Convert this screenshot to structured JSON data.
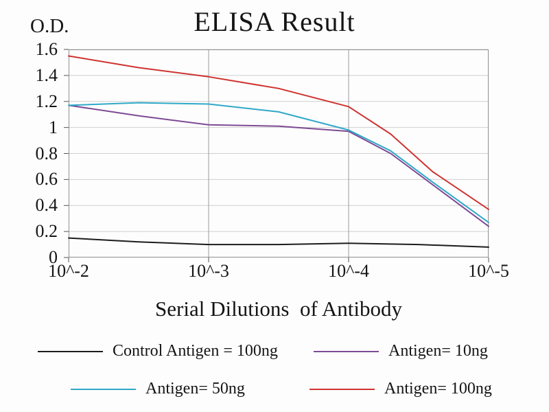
{
  "title": "ELISA Result",
  "y_axis_title": "O.D.",
  "x_axis_title": "Serial Dilutions  of Antibody",
  "colors": {
    "control": "#1c1c1c",
    "antigen_10ng": "#7d4a94",
    "antigen_50ng": "#2fa8c8",
    "antigen_100ng": "#cf3330",
    "grid_vertical": "#9b9b9b",
    "grid_horizontal": "#cfcfcf",
    "plot_border": "#8f8f8f"
  },
  "chart_data": {
    "type": "line",
    "title": "ELISA Result",
    "xlabel": "Serial Dilutions of Antibody",
    "ylabel": "O.D.",
    "x_scale": "log dilution exponent",
    "x_tick_labels": [
      "10^-2",
      "10^-3",
      "10^-4",
      "10^-5"
    ],
    "x_exponents": [
      -2,
      -3,
      -4,
      -5
    ],
    "ylim": [
      0,
      1.6
    ],
    "y_ticks": [
      0,
      0.2,
      0.4,
      0.6,
      0.8,
      1,
      1.2,
      1.4,
      1.6
    ],
    "grid": true,
    "legend_position": "bottom",
    "series": [
      {
        "name": "Control Antigen = 100ng",
        "color": "#1c1c1c",
        "points": [
          [
            -2,
            0.15
          ],
          [
            -2.5,
            0.12
          ],
          [
            -3,
            0.1
          ],
          [
            -3.5,
            0.1
          ],
          [
            -4,
            0.11
          ],
          [
            -4.5,
            0.1
          ],
          [
            -5,
            0.08
          ]
        ]
      },
      {
        "name": "Antigen= 10ng",
        "color": "#7d4a94",
        "points": [
          [
            -2,
            1.17
          ],
          [
            -2.5,
            1.09
          ],
          [
            -3,
            1.02
          ],
          [
            -3.5,
            1.01
          ],
          [
            -4,
            0.97
          ],
          [
            -4.3,
            0.8
          ],
          [
            -4.6,
            0.56
          ],
          [
            -5,
            0.24
          ]
        ]
      },
      {
        "name": "Antigen= 50ng",
        "color": "#2fa8c8",
        "points": [
          [
            -2,
            1.17
          ],
          [
            -2.5,
            1.19
          ],
          [
            -3,
            1.18
          ],
          [
            -3.5,
            1.12
          ],
          [
            -4,
            0.98
          ],
          [
            -4.3,
            0.82
          ],
          [
            -4.6,
            0.58
          ],
          [
            -5,
            0.27
          ]
        ]
      },
      {
        "name": "Antigen= 100ng",
        "color": "#cf3330",
        "points": [
          [
            -2,
            1.55
          ],
          [
            -2.5,
            1.46
          ],
          [
            -3,
            1.39
          ],
          [
            -3.5,
            1.3
          ],
          [
            -4,
            1.16
          ],
          [
            -4.3,
            0.95
          ],
          [
            -4.6,
            0.66
          ],
          [
            -5,
            0.37
          ]
        ]
      }
    ]
  },
  "legend": {
    "items": [
      {
        "label": "Control Antigen = 100ng",
        "color": "#1c1c1c"
      },
      {
        "label": "Antigen= 10ng",
        "color": "#7d4a94"
      },
      {
        "label": "Antigen= 50ng",
        "color": "#2fa8c8"
      },
      {
        "label": "Antigen= 100ng",
        "color": "#cf3330"
      }
    ]
  }
}
